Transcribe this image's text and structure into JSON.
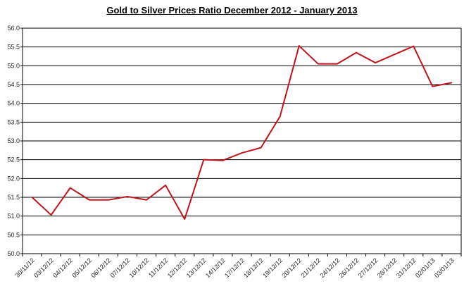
{
  "chart_data": {
    "type": "line",
    "title": "Gold to Silver Prices Ratio December 2012 - January 2013",
    "xlabel": "",
    "ylabel": "",
    "ylim": [
      50.0,
      56.0
    ],
    "yticks": [
      "50.0",
      "50.5",
      "51.0",
      "51.5",
      "52.0",
      "52.5",
      "53.0",
      "53.5",
      "54.0",
      "54.5",
      "55.0",
      "55.5",
      "56.0"
    ],
    "grid": true,
    "legend": "none",
    "line_color": "#c0141c",
    "categories": [
      "30/11/12",
      "03/12/12",
      "04/12/12",
      "05/12/12",
      "06/12/12",
      "07/12/12",
      "10/12/12",
      "11/12/12",
      "12/12/12",
      "13/12/12",
      "14/12/12",
      "17/12/12",
      "18/12/12",
      "19/12/12",
      "20/12/12",
      "21/12/12",
      "24/12/12",
      "26/12/12",
      "27/12/12",
      "28/12/12",
      "31/12/12",
      "02/01/13",
      "03/01/13"
    ],
    "values": [
      51.5,
      51.03,
      51.75,
      51.43,
      51.43,
      51.52,
      51.43,
      51.82,
      50.92,
      52.5,
      52.48,
      52.68,
      52.82,
      53.65,
      55.53,
      55.05,
      55.05,
      55.35,
      55.08,
      55.3,
      55.52,
      54.45,
      54.55
    ]
  }
}
